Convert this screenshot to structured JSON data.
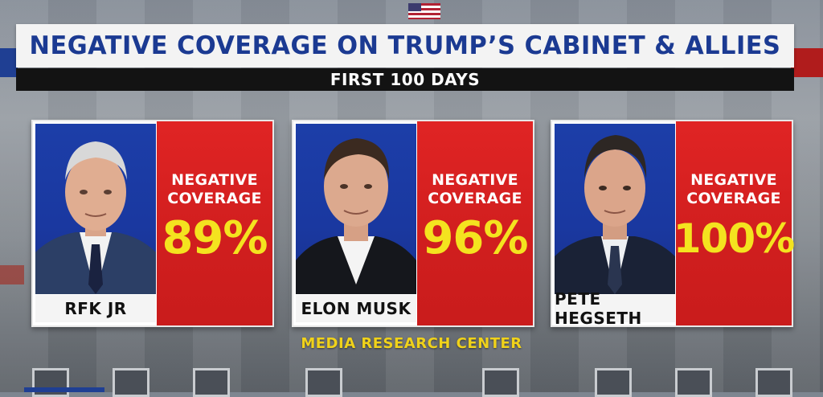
{
  "header": {
    "title": "NEGATIVE COVERAGE ON TRUMP’S CABINET & ALLIES",
    "subtitle": "FIRST 100 DAYS"
  },
  "cards": [
    {
      "name": "RFK JR",
      "label_line1": "NEGATIVE",
      "label_line2": "COVERAGE",
      "value": "89%"
    },
    {
      "name": "ELON MUSK",
      "label_line1": "NEGATIVE",
      "label_line2": "COVERAGE",
      "value": "96%"
    },
    {
      "name": "PETE HEGSETH",
      "label_line1": "NEGATIVE",
      "label_line2": "COVERAGE",
      "value": "100%"
    }
  ],
  "source": "MEDIA RESEARCH CENTER",
  "colors": {
    "title_blue": "#1b3a92",
    "stat_red": "#d01e1e",
    "stat_yellow": "#f4e31f",
    "photo_blue": "#1a38a0"
  }
}
